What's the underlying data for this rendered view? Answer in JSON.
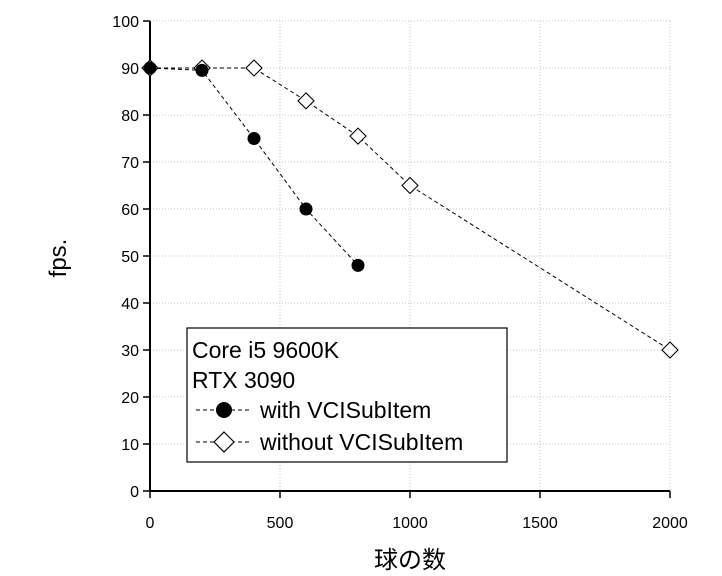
{
  "chart_data": {
    "type": "line",
    "xlabel": "球の数",
    "ylabel": "fps.",
    "xlim": [
      0,
      2000
    ],
    "ylim": [
      0,
      100
    ],
    "x_ticks": [
      0,
      500,
      1000,
      1500,
      2000
    ],
    "y_ticks": [
      0,
      10,
      20,
      30,
      40,
      50,
      60,
      70,
      80,
      90,
      100
    ],
    "grid": "dotted",
    "legend": {
      "placement": "bottom-left",
      "header": [
        "Core i5 9600K",
        "RTX 3090"
      ]
    },
    "series": [
      {
        "name": "with VCISubItem",
        "marker": "filled-circle",
        "line": "dashed",
        "x": [
          0,
          200,
          400,
          600,
          800
        ],
        "y": [
          90,
          89.5,
          75,
          60,
          48
        ]
      },
      {
        "name": "without VCISubItem",
        "marker": "open-diamond",
        "line": "dashed",
        "x": [
          0,
          200,
          400,
          600,
          800,
          1000,
          2000
        ],
        "y": [
          90,
          90,
          90,
          83,
          75.5,
          65,
          30
        ]
      }
    ]
  },
  "colors": {
    "axis": "#000000",
    "grid": "#b4b4b4",
    "marker_fill": "#000000",
    "marker_open": "#ffffff"
  }
}
